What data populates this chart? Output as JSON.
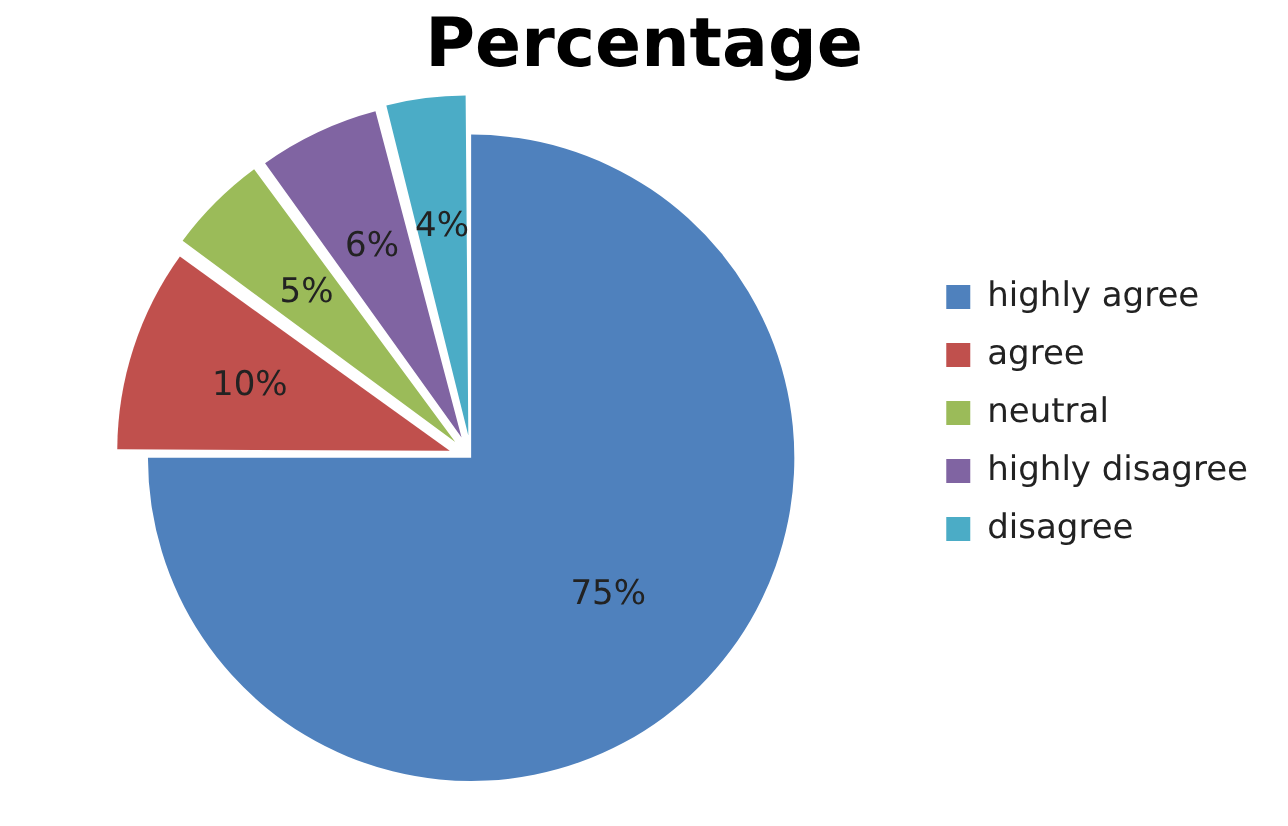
{
  "chart_data": {
    "type": "pie",
    "title": "Percentage",
    "categories": [
      "highly agree",
      "agree",
      "neutral",
      "highly disagree",
      "disagree"
    ],
    "values": [
      75,
      10,
      5,
      6,
      4
    ],
    "colors": [
      "#4f81bd",
      "#c0504d",
      "#9bbb59",
      "#8064a2",
      "#4bacc6"
    ],
    "value_labels": [
      "75%",
      "10%",
      "5%",
      "6%",
      "4%"
    ],
    "legend": "right"
  }
}
